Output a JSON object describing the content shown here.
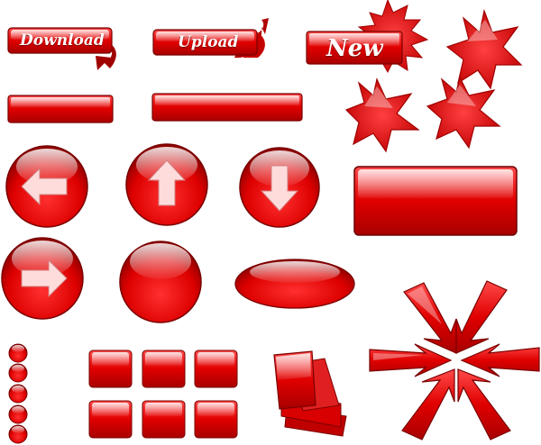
{
  "buttons": {
    "download_label": "Download",
    "upload_label": "Upload",
    "new_label": "New"
  },
  "colors": {
    "red_light": "#ff5a5a",
    "red": "#e00000",
    "red_dark": "#8a0000",
    "outline": "#6b0000",
    "gloss": "#ffffff"
  },
  "icons": {
    "round_buttons": [
      "arrow-left-icon",
      "arrow-up-icon",
      "arrow-down-icon",
      "arrow-right-icon",
      "blank-circle"
    ],
    "stars": [
      "star-burst-large",
      "star-burst-small-1",
      "star-burst-small-2",
      "star-burst-small-3"
    ],
    "compass": "arrows-converge-icon"
  }
}
